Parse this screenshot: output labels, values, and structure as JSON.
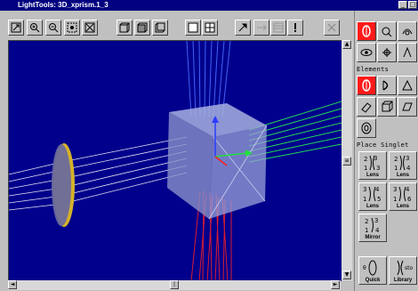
{
  "window": {
    "title": "LightTools: 3D_xprism.1_3"
  },
  "panel": {
    "elements_label": "Elements",
    "place_singlet_label": "Place Singlet",
    "buttons": [
      {
        "label": "Lens"
      },
      {
        "label": "Lens"
      },
      {
        "label": "Lens"
      },
      {
        "label": "Lens"
      },
      {
        "label": "Mirror"
      },
      {
        "label": "Quick"
      },
      {
        "label": "Library"
      }
    ]
  },
  "colors": {
    "viewport_bg": "#00008c",
    "selected_tool": "#ff1a1a",
    "title_bar": "#000080"
  },
  "icons": [
    "zoom-fit-icon",
    "zoom-in-icon",
    "zoom-out-icon",
    "zoom-window-icon",
    "zoom-extents-icon",
    "view-front-icon",
    "view-iso-icon",
    "view-side-icon",
    "single-view-icon",
    "quad-view-icon",
    "pointer-icon",
    "ray-icon",
    "grid-icon",
    "exclamation-icon",
    "close-view-icon"
  ]
}
